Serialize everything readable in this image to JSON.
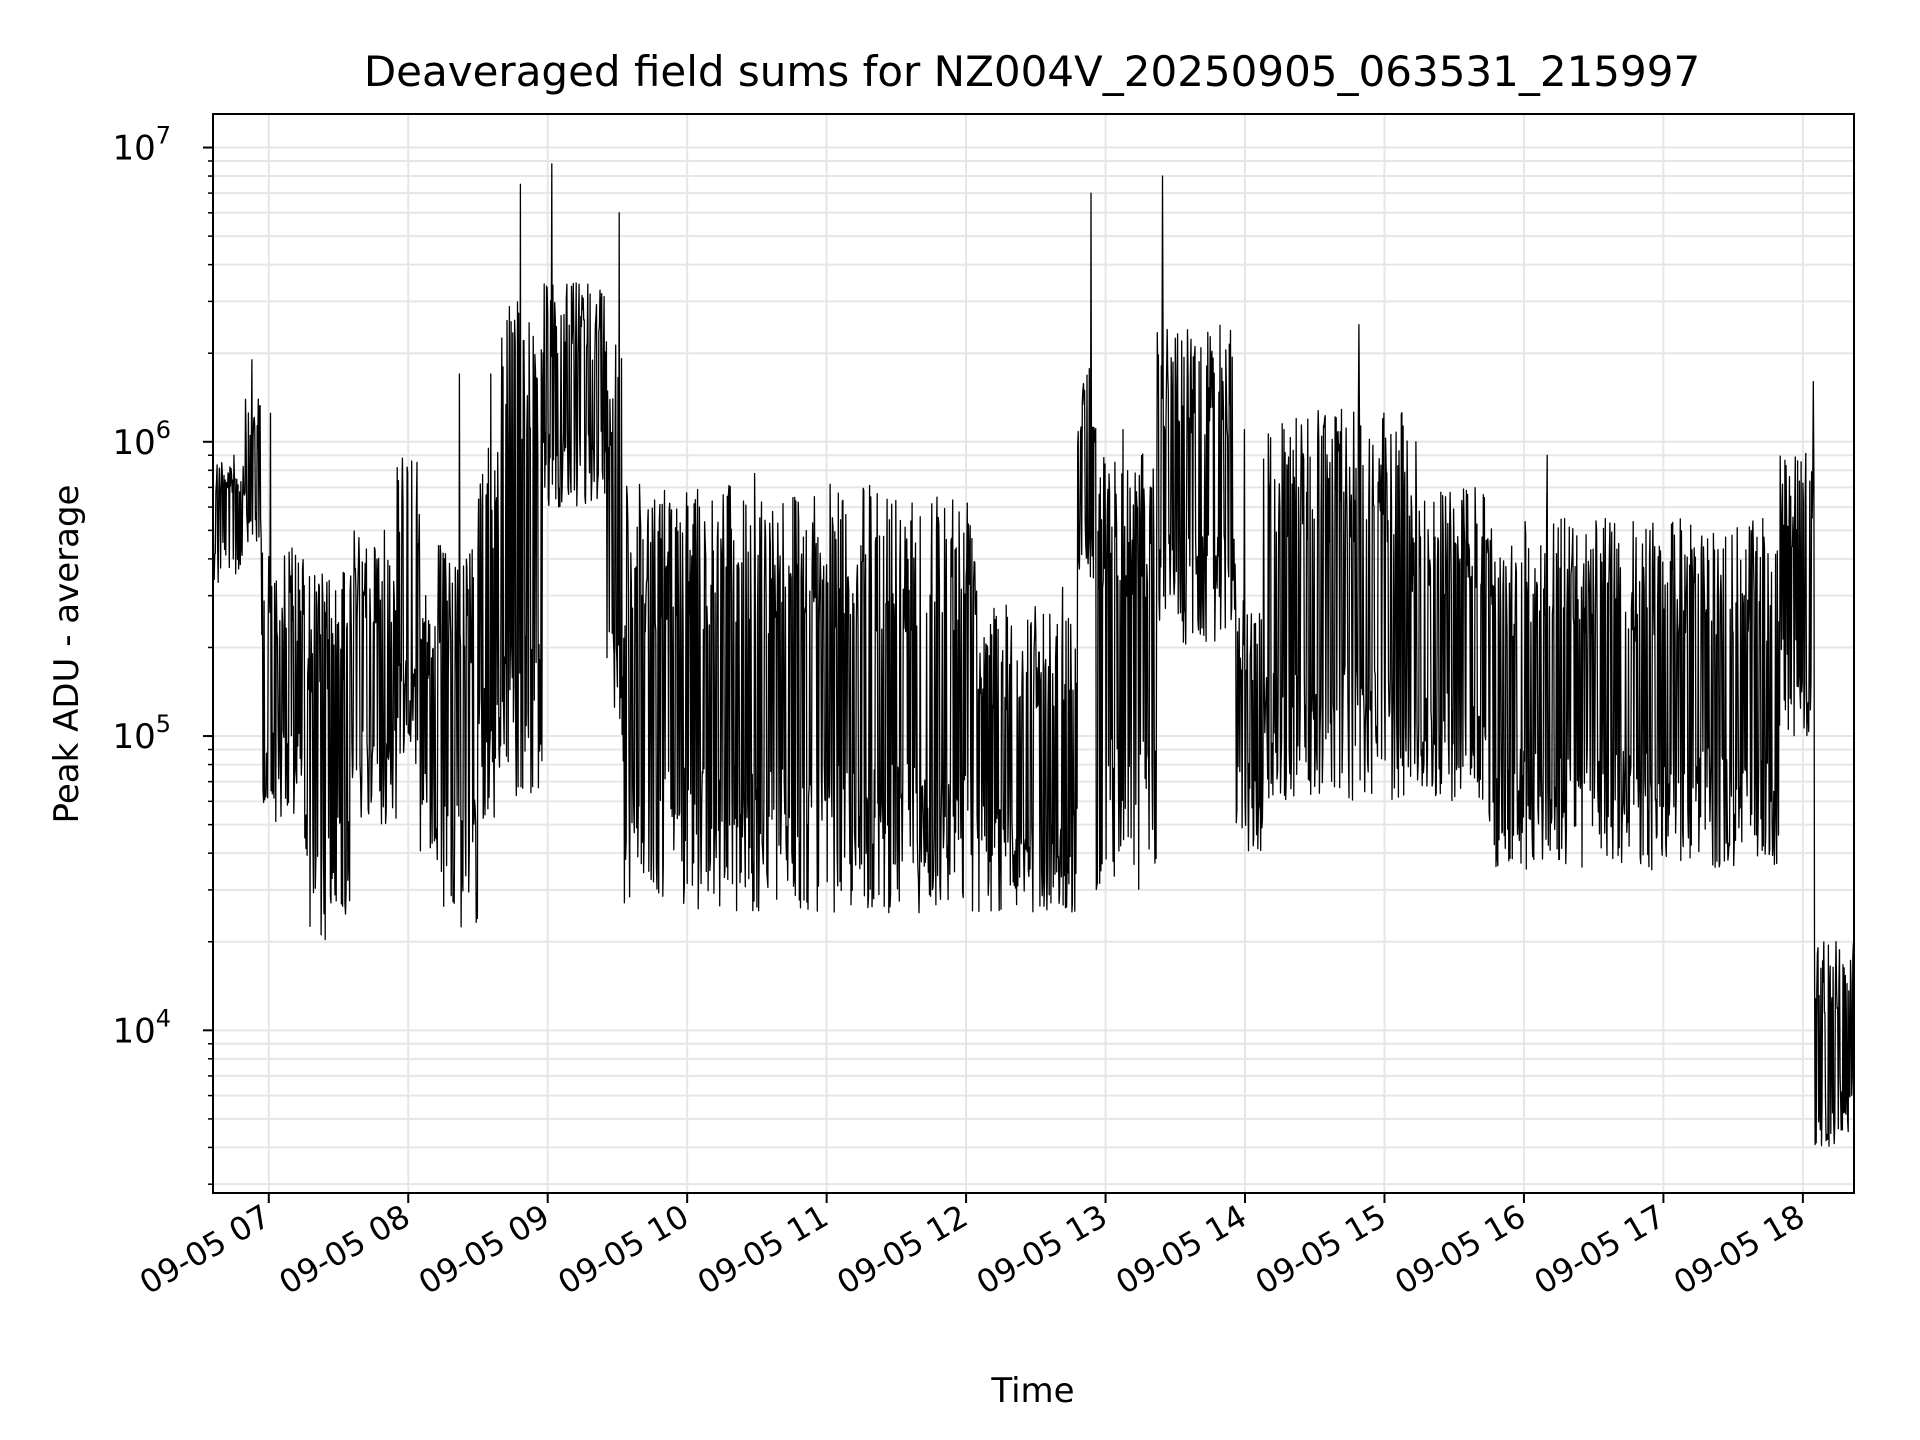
{
  "chart_data": {
    "type": "line",
    "title": "Deaveraged field sums for NZ004V_20250905_063531_215997",
    "xlabel": "Time",
    "ylabel": "Peak ADU - average",
    "yscale": "log",
    "ylim": [
      2800,
      13000000
    ],
    "xlim": [
      "2025-09-05 06:36",
      "2025-09-05 18:22"
    ],
    "grid": true,
    "line_color": "#000000",
    "grid_color": "#e6e6e6",
    "x_ticks": [
      "09-05 07",
      "09-05 08",
      "09-05 09",
      "09-05 10",
      "09-05 11",
      "09-05 12",
      "09-05 13",
      "09-05 14",
      "09-05 15",
      "09-05 16",
      "09-05 17",
      "09-05 18"
    ],
    "x_tick_times": [
      "2025-09-05 07:00",
      "2025-09-05 08:00",
      "2025-09-05 09:00",
      "2025-09-05 10:00",
      "2025-09-05 11:00",
      "2025-09-05 12:00",
      "2025-09-05 13:00",
      "2025-09-05 14:00",
      "2025-09-05 15:00",
      "2025-09-05 16:00",
      "2025-09-05 17:00",
      "2025-09-05 18:00"
    ],
    "y_ticks": [
      {
        "value": 10000,
        "base": "10",
        "exp": "4"
      },
      {
        "value": 100000,
        "base": "10",
        "exp": "5"
      },
      {
        "value": 1000000,
        "base": "10",
        "exp": "6"
      },
      {
        "value": 10000000,
        "base": "10",
        "exp": "7"
      }
    ],
    "series": [
      {
        "segments": [
          {
            "start": "2025-09-05 06:36",
            "end": "2025-09-05 06:50",
            "low": 320000,
            "high": 900000,
            "spike": 900000
          },
          {
            "start": "2025-09-05 06:50",
            "end": "2025-09-05 06:57",
            "low": 400000,
            "high": 1400000,
            "spike": 1900000
          },
          {
            "start": "2025-09-05 06:57",
            "end": "2025-09-05 07:15",
            "low": 50000,
            "high": 450000,
            "spike": 1250000
          },
          {
            "start": "2025-09-05 07:15",
            "end": "2025-09-05 07:35",
            "low": 20000,
            "high": 360000,
            "spike": 360000
          },
          {
            "start": "2025-09-05 07:35",
            "end": "2025-09-05 07:55",
            "low": 50000,
            "high": 500000,
            "spike": 500000
          },
          {
            "start": "2025-09-05 07:55",
            "end": "2025-09-05 08:05",
            "low": 80000,
            "high": 880000,
            "spike": 880000
          },
          {
            "start": "2025-09-05 08:05",
            "end": "2025-09-05 08:12",
            "low": 40000,
            "high": 300000,
            "spike": 300000
          },
          {
            "start": "2025-09-05 08:12",
            "end": "2025-09-05 08:30",
            "low": 22000,
            "high": 450000,
            "spike": 1700000
          },
          {
            "start": "2025-09-05 08:30",
            "end": "2025-09-05 08:40",
            "low": 50000,
            "high": 1200000,
            "spike": 1700000
          },
          {
            "start": "2025-09-05 08:40",
            "end": "2025-09-05 08:58",
            "low": 60000,
            "high": 3000000,
            "spike": 7500000
          },
          {
            "start": "2025-09-05 08:58",
            "end": "2025-09-05 09:25",
            "low": 600000,
            "high": 3500000,
            "spike": 8800000
          },
          {
            "start": "2025-09-05 09:25",
            "end": "2025-09-05 09:33",
            "low": 80000,
            "high": 2500000,
            "spike": 6000000
          },
          {
            "start": "2025-09-05 09:33",
            "end": "2025-09-05 12:05",
            "low": 25000,
            "high": 720000,
            "spike": 780000
          },
          {
            "start": "2025-09-05 12:05",
            "end": "2025-09-05 12:48",
            "low": 25000,
            "high": 280000,
            "spike": 320000
          },
          {
            "start": "2025-09-05 12:48",
            "end": "2025-09-05 12:56",
            "low": 300000,
            "high": 1800000,
            "spike": 7000000
          },
          {
            "start": "2025-09-05 12:56",
            "end": "2025-09-05 13:22",
            "low": 30000,
            "high": 950000,
            "spike": 1100000
          },
          {
            "start": "2025-09-05 13:22",
            "end": "2025-09-05 13:56",
            "low": 200000,
            "high": 2500000,
            "spike": 8000000
          },
          {
            "start": "2025-09-05 13:56",
            "end": "2025-09-05 14:08",
            "low": 40000,
            "high": 300000,
            "spike": 1100000
          },
          {
            "start": "2025-09-05 14:08",
            "end": "2025-09-05 15:10",
            "low": 60000,
            "high": 1300000,
            "spike": 2500000
          },
          {
            "start": "2025-09-05 15:10",
            "end": "2025-09-05 15:45",
            "low": 60000,
            "high": 700000,
            "spike": 1000000
          },
          {
            "start": "2025-09-05 15:45",
            "end": "2025-09-05 17:50",
            "low": 35000,
            "high": 550000,
            "spike": 900000
          },
          {
            "start": "2025-09-05 17:50",
            "end": "2025-09-05 18:05",
            "low": 100000,
            "high": 950000,
            "spike": 1600000
          },
          {
            "start": "2025-09-05 18:05",
            "end": "2025-09-05 18:22",
            "low": 4000,
            "high": 20000,
            "spike": 20000
          }
        ]
      }
    ]
  }
}
